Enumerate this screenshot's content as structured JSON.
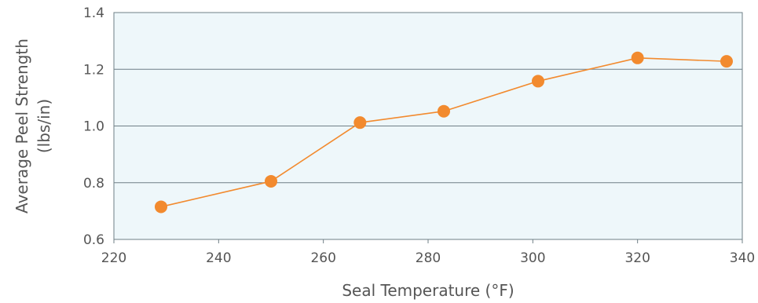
{
  "chart_data": {
    "type": "line",
    "title": "",
    "xlabel": "Seal Temperature (°F)",
    "ylabel_lines": [
      "Average Peel Strength",
      "(lbs/in)"
    ],
    "xlim": [
      220,
      340
    ],
    "ylim": [
      0.6,
      1.4
    ],
    "x_ticks": [
      220,
      240,
      260,
      280,
      300,
      320,
      340
    ],
    "y_ticks": [
      "0.6",
      "0.8",
      "1.0",
      "1.2",
      "1.4"
    ],
    "grid": "horizontal",
    "series": [
      {
        "x": [
          229,
          250,
          267,
          283,
          301,
          320,
          337
        ],
        "y": [
          0.715,
          0.805,
          1.012,
          1.052,
          1.158,
          1.24,
          1.228
        ]
      }
    ],
    "colors": {
      "line": "#f28a2e",
      "marker": "#f28a2e",
      "plot_background": "#eef7fa",
      "gridline": "#6f7f86",
      "frame": "#6f7f86"
    }
  }
}
